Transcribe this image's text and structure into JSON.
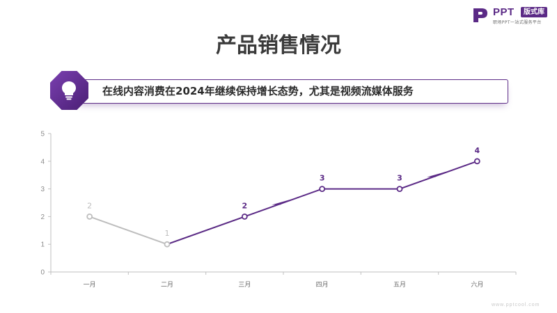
{
  "logo": {
    "brand": "PPT",
    "badge": "版式库",
    "tagline": "职场PPT一站式服务平台"
  },
  "page": {
    "title": "产品销售情况",
    "banner_text": "在线内容消费在2024年继续保持增长态势，尤其是视频流媒体服务",
    "banner_icon": "lightbulb-icon"
  },
  "watermark": "www.pptcool.com",
  "colors": {
    "accent": "#5b2a86",
    "muted_line": "#bdbdbd",
    "muted_label": "#bdbdbd"
  },
  "chart_data": {
    "type": "line",
    "categories": [
      "一月",
      "二月",
      "三月",
      "四月",
      "五月",
      "六月"
    ],
    "values": [
      2,
      1,
      2,
      3,
      3,
      4
    ],
    "data_labels": [
      "2",
      "1",
      "2",
      "3",
      "3",
      "4"
    ],
    "highlight_from_index": 2,
    "y_ticks": [
      "0",
      "1",
      "2",
      "3",
      "4",
      "5"
    ],
    "ylim": [
      0,
      5
    ],
    "grid": false,
    "legend": "none",
    "title": "",
    "xlabel": "",
    "ylabel": ""
  }
}
